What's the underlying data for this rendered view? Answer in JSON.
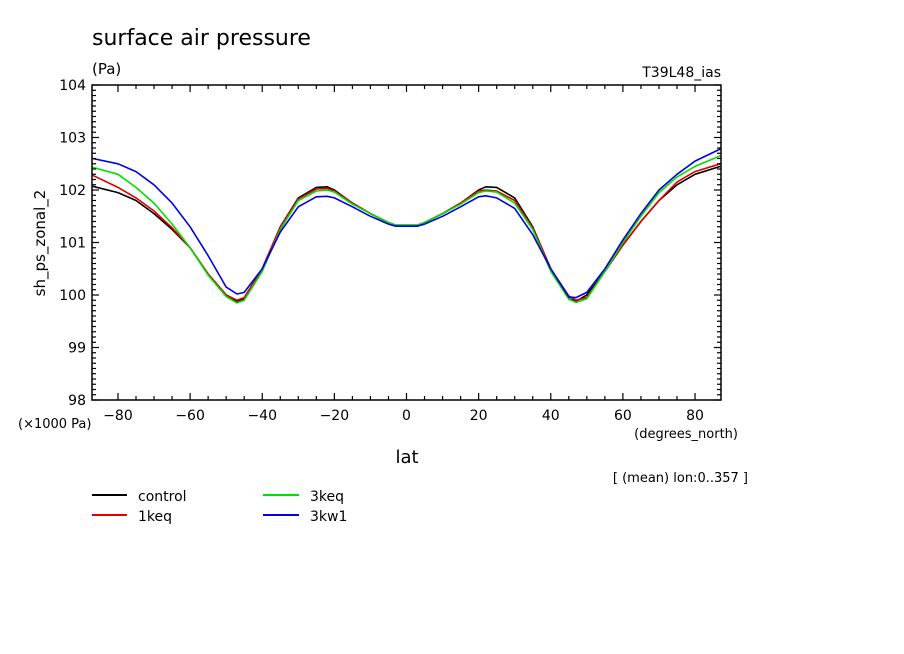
{
  "colors": {
    "control": "#000000",
    "1keq": "#e00000",
    "3keq": "#00e000",
    "3kw1": "#0000e0",
    "axis": "#000000",
    "background": "#ffffff"
  },
  "chart_data": {
    "type": "line",
    "title": "surface air pressure",
    "units": "(Pa)",
    "run_label": "T39L48_ias",
    "ylabel": "sh_ps_zonal_2",
    "xlabel": "lat",
    "x_units": "(degrees_north)",
    "y_scale_note": "(×1000 Pa)",
    "subset_note": "[ (mean) lon:0..357 ]",
    "xlim": [
      -87.2,
      87.2
    ],
    "ylim": [
      98,
      104
    ],
    "x_ticks": [
      -80,
      -60,
      -40,
      -20,
      0,
      20,
      40,
      60,
      80
    ],
    "x_tick_labels": [
      "−80",
      "−60",
      "−40",
      "−20",
      "0",
      "20",
      "40",
      "60",
      "80"
    ],
    "y_ticks": [
      98,
      99,
      100,
      101,
      102,
      103,
      104
    ],
    "y_tick_labels": [
      "98",
      "99",
      "100",
      "101",
      "102",
      "103",
      "104"
    ],
    "x": [
      -87,
      -80,
      -75,
      -70,
      -65,
      -60,
      -55,
      -50,
      -47,
      -45,
      -40,
      -35,
      -30,
      -25,
      -22,
      -20,
      -15,
      -10,
      -5,
      -3,
      0,
      3,
      5,
      10,
      15,
      20,
      22,
      25,
      30,
      35,
      40,
      45,
      47,
      50,
      55,
      60,
      65,
      70,
      75,
      80,
      87
    ],
    "series": [
      {
        "key": "control",
        "name": "control",
        "values": [
          102.07,
          101.95,
          101.8,
          101.55,
          101.25,
          100.9,
          100.4,
          100.0,
          99.88,
          99.93,
          100.5,
          101.3,
          101.85,
          102.05,
          102.06,
          102.0,
          101.75,
          101.55,
          101.38,
          101.33,
          101.33,
          101.33,
          101.38,
          101.55,
          101.75,
          102.0,
          102.06,
          102.05,
          101.85,
          101.3,
          100.5,
          99.93,
          99.88,
          100.0,
          100.45,
          100.95,
          101.4,
          101.8,
          102.1,
          102.3,
          102.45
        ]
      },
      {
        "key": "1keq",
        "name": "1keq",
        "values": [
          102.28,
          102.05,
          101.85,
          101.6,
          101.28,
          100.9,
          100.4,
          100.0,
          99.9,
          99.95,
          100.5,
          101.3,
          101.83,
          102.02,
          102.03,
          101.98,
          101.75,
          101.55,
          101.38,
          101.33,
          101.33,
          101.33,
          101.38,
          101.55,
          101.75,
          101.98,
          102.0,
          101.98,
          101.8,
          101.28,
          100.5,
          99.98,
          99.9,
          99.95,
          100.45,
          100.95,
          101.4,
          101.8,
          102.15,
          102.35,
          102.5
        ]
      },
      {
        "key": "3keq",
        "name": "3keq",
        "values": [
          102.43,
          102.3,
          102.05,
          101.75,
          101.35,
          100.9,
          100.38,
          99.97,
          99.85,
          99.9,
          100.45,
          101.25,
          101.8,
          101.98,
          102.0,
          101.96,
          101.73,
          101.55,
          101.38,
          101.33,
          101.33,
          101.33,
          101.38,
          101.55,
          101.73,
          101.95,
          101.98,
          101.96,
          101.75,
          101.25,
          100.45,
          99.92,
          99.86,
          99.93,
          100.45,
          101.0,
          101.5,
          101.95,
          102.25,
          102.45,
          102.65
        ]
      },
      {
        "key": "3kw1",
        "name": "3kw1",
        "values": [
          102.6,
          102.5,
          102.35,
          102.1,
          101.75,
          101.3,
          100.75,
          100.15,
          100.02,
          100.05,
          100.5,
          101.2,
          101.68,
          101.87,
          101.88,
          101.85,
          101.68,
          101.5,
          101.35,
          101.31,
          101.31,
          101.31,
          101.35,
          101.5,
          101.68,
          101.87,
          101.89,
          101.85,
          101.65,
          101.15,
          100.5,
          99.96,
          99.95,
          100.05,
          100.5,
          101.05,
          101.55,
          102.0,
          102.3,
          102.55,
          102.78
        ]
      }
    ],
    "legend": [
      "control",
      "1keq",
      "3keq",
      "3kw1"
    ],
    "legend_placement": "bottom-left"
  }
}
